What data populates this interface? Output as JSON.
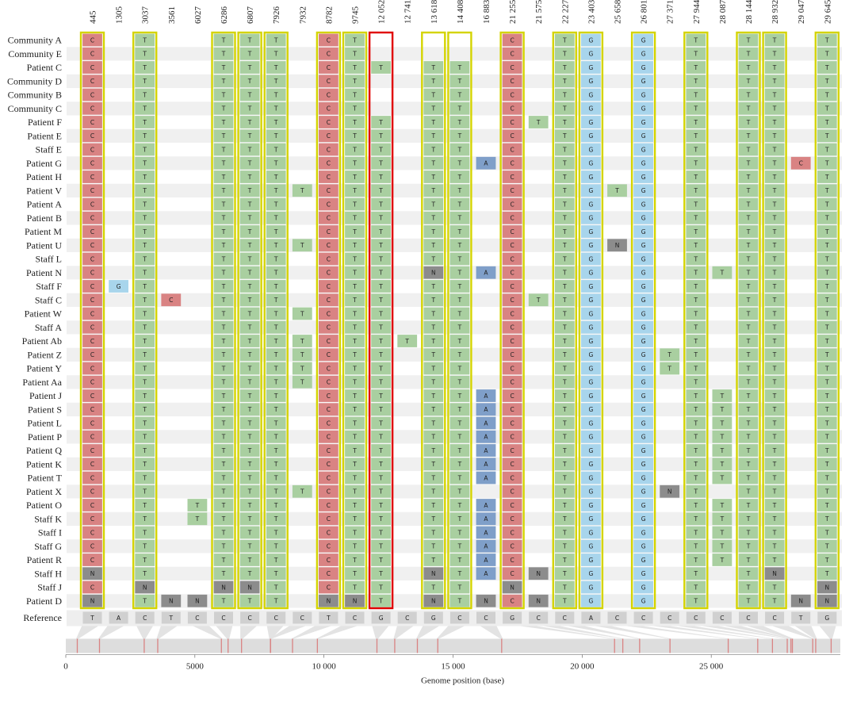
{
  "chart_data": {
    "type": "variant-alignment",
    "title": "",
    "axis": {
      "xlabel": "Genome position (base)",
      "xlim": [
        0,
        30000
      ],
      "ticks": [
        0,
        5000,
        10000,
        15000,
        20000,
        25000
      ],
      "tick_labels": [
        "0",
        "5000",
        "10 000",
        "15 000",
        "20 000",
        "25 000"
      ]
    },
    "colors": {
      "C": "#d98383",
      "T": "#a9cfa0",
      "G": "#a8d5ec",
      "A": "#7f9fc9",
      "N": "#8c8c8c",
      "frame": "#d4d400",
      "selected_frame": "#e00000"
    },
    "positions": [
      "445",
      "1305",
      "3037",
      "3561",
      "6027",
      "6286",
      "6807",
      "7926",
      "7932",
      "8782",
      "9745",
      "12 052",
      "12 741",
      "13 618",
      "14 408",
      "16 883",
      "21 255",
      "21 575",
      "22 227",
      "23 403",
      "25 658",
      "26 801",
      "27 371",
      "27 944",
      "28 087",
      "28 144",
      "28 932",
      "29 047",
      "29 645"
    ],
    "genome_positions": [
      445,
      1305,
      3037,
      3561,
      6027,
      6286,
      6807,
      7926,
      7932,
      8782,
      9745,
      12052,
      12741,
      13618,
      14408,
      16883,
      21255,
      21575,
      22227,
      23403,
      25658,
      26801,
      27371,
      27944,
      28087,
      28144,
      28932,
      29047,
      29645
    ],
    "reference_label": "Reference",
    "reference": [
      "T",
      "A",
      "C",
      "T",
      "C",
      "C",
      "C",
      "C",
      "C",
      "T",
      "C",
      "G",
      "C",
      "G",
      "C",
      "C",
      "G",
      "C",
      "C",
      "A",
      "C",
      "C",
      "C",
      "C",
      "C",
      "C",
      "C",
      "T",
      "G"
    ],
    "highlighted_positions": [
      "445",
      "3037",
      "6286",
      "6807",
      "7926",
      "8782",
      "9745",
      "13 618",
      "14 408",
      "21 255",
      "22 227",
      "23 403",
      "26 801",
      "27 944",
      "28 144",
      "28 932",
      "29 645"
    ],
    "selected_position": "12 052",
    "sample_labels": [
      "Community A",
      "Community E",
      "Patient C",
      "Community D",
      "Community B",
      "Community C",
      "Patient F",
      "Patient E",
      "Staff E",
      "Patient G",
      "Patient H",
      "Patient V",
      "Patient A",
      "Patient B",
      "Patient M",
      "Patient U",
      "Staff L",
      "Patient N",
      "Staff F",
      "Staff C",
      "Patient W",
      "Staff A",
      "Patient Ab",
      "Patient Z",
      "Patient Y",
      "Patient Aa",
      "Patient J",
      "Patient S",
      "Patient L",
      "Patient P",
      "Patient Q",
      "Patient K",
      "Patient T",
      "Patient X",
      "Patient O",
      "Staff K",
      "Staff I",
      "Staff G",
      "Patient R",
      "Staff H",
      "Staff J",
      "Patient D"
    ],
    "sample_rows": [
      "C.T..TTT.CT.....C.TG.G.T.TT.T",
      "C.T..TTT.CT.....C.TG.G.T.TT.T",
      "C.T..TTT.CTT.TT.C.TG.G.T.TT.T",
      "C.T..TTT.CT..TT.C.TG.G.T.TT.T",
      "C.T..TTT.CT..TT.C.TG.G.T.TT.T",
      "C.T..TTT.CT..TT.C.TG.G.T.TT.T",
      "C.T..TTT.CTT.TT.CTTG.G.T.TT.T",
      "C.T..TTT.CTT.TT.C.TG.G.T.TT.T",
      "C.T..TTT.CTT.TT.C.TG.G.T.TT.T",
      "C.T..TTT.CTT.TTAC.TG.G.T.TTCT",
      "C.T..TTT.CTT.TT.C.TG.G.T.TT.T",
      "C.T..TTTTCTT.TT.C.TGTG.T.TT.T",
      "C.T..TTT.CTT.TT.C.TG.G.T.TT.T",
      "C.T..TTT.CTT.TT.C.TG.G.T.TT.T",
      "C.T..TTT.CTT.TT.C.TG.G.T.TT.T",
      "C.T..TTTTCTT.TT.C.TGNG.T.TT.T",
      "C.T..TTT.CTT.TT.C.TG.G.T.TT.T",
      "C.T..TTT.CTT.NTAC.TG.G.TTTT.T",
      "CGT..TTT.CTT.TT.C.TG.G.T.TT.T",
      "C.TC.TTT.CTT.TT.CTTG.G.T.TT.T",
      "C.T..TTTTCTT.TT.C.TG.G.T.TT.T",
      "C.T..TTT.CTT.TT.C.TG.G.T.TT.T",
      "C.T..TTTTCTTTTT.C.TG.G.T.TT.T",
      "C.T..TTTTCTT.TT.C.TG.GTT.TT.T",
      "C.T..TTTTCTT.TT.C.TG.GTT.TT.T",
      "C.T..TTTTCTT.TT.C.TG.G.T.TT.T",
      "C.T..TTT.CTT.TTAC.TG.G.TTTT.T",
      "C.T..TTT.CTT.TTAC.TG.G.TTTT.T",
      "C.T..TTT.CTT.TTAC.TG.G.TTTT.T",
      "C.T..TTT.CTT.TTAC.TG.G.TTTT.T",
      "C.T..TTT.CTT.TTAC.TG.G.TTTT.T",
      "C.T..TTT.CTT.TTAC.TG.G.TTTT.T",
      "C.T..TTT.CTT.TTAC.TG.G.TTTT.T",
      "C.T..TTTTCTT.TT.C.TG.GNT.TT.T",
      "C.T.TTTT.CTT.TTAC.TG.G.TTTT.T",
      "C.T.TTTT.CTT.TTAC.TG.G.TTTT.T",
      "C.T..TTT.CTT.TTAC.TG.G.TTTT.T",
      "C.T..TTT.CTT.TTAC.TG.G.TTTT.T",
      "C.T..TTT.CTT.TTAC.TG.G.TTTT.T",
      "N.T..TTT.CTT.NTACNTG.G.T.TN.T",
      "C.N..NNT.CTT.TT.N.TG.G.T.TT.N",
      "N.TNNTTT.NNT.NTNCNTG.G.T.TTNN"
    ]
  }
}
